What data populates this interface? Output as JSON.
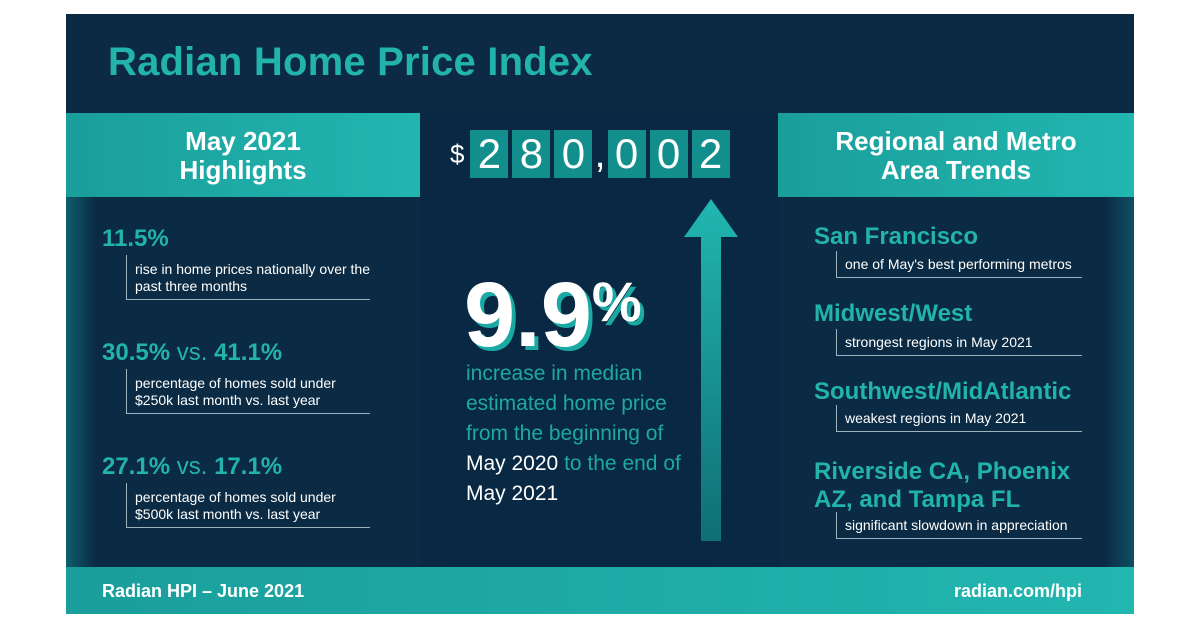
{
  "title": "Radian Home Price Index",
  "left": {
    "header": [
      "May 2021",
      "Highlights"
    ],
    "items": [
      {
        "value": "11.5%",
        "desc": "rise in home prices nationally over the past three months"
      },
      {
        "value_a": "30.5%",
        "vs": " vs. ",
        "value_b": "41.1%",
        "desc": "percentage of homes sold under $250k last month vs. last year"
      },
      {
        "value_a": "27.1%",
        "vs": " vs. ",
        "value_b": "17.1%",
        "desc": "percentage of homes sold under $500k last month vs. last year"
      }
    ]
  },
  "middle": {
    "currency": "$",
    "digits": [
      "2",
      "8",
      "0",
      "0",
      "0",
      "2"
    ],
    "comma": ",",
    "big_value": "9.9",
    "big_unit": "%",
    "text_1": "increase in median estimated home price from  the beginning of",
    "text_2": "May 2020",
    "text_3": " to the end of ",
    "text_4": "May 2021"
  },
  "right": {
    "header": [
      "Regional and Metro",
      "Area Trends"
    ],
    "items": [
      {
        "name": "San Francisco",
        "desc": "one of May's best performing metros"
      },
      {
        "name": "Midwest/West",
        "desc": "strongest regions in May 2021"
      },
      {
        "name": "Southwest/MidAtlantic",
        "desc": "weakest regions in May 2021"
      },
      {
        "name": "Riverside CA, Phoenix AZ, and Tampa FL",
        "desc": "significant slowdown in appreciation"
      }
    ]
  },
  "footer": {
    "left": "Radian HPI – June 2021",
    "right": "radian.com/hpi"
  },
  "colors": {
    "navy": "#0c2a43",
    "teal": "#22b3ad"
  }
}
